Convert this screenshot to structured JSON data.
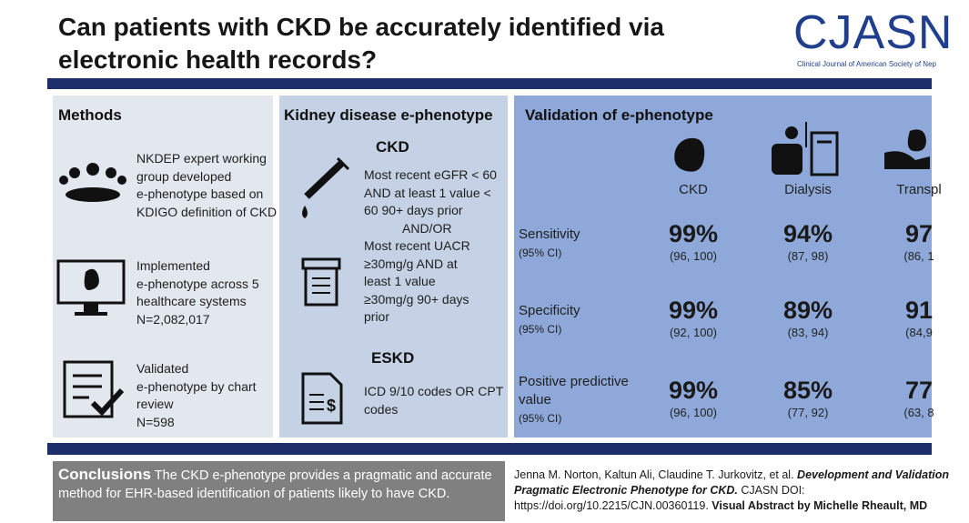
{
  "header": {
    "title": [
      "Can patients with CKD be accurately identified via",
      "electronic health records?"
    ],
    "logo": "CJASN",
    "logo_subtitle": "Clinical Journal of American Society of Nep"
  },
  "methods": {
    "title": "Methods",
    "items": [
      [
        "NKDEP expert working",
        "group developed",
        "e-phenotype based on",
        "KDIGO definition of CKD"
      ],
      [
        "Implemented",
        "e-phenotype across 5",
        "healthcare systems",
        "N=2,082,017"
      ],
      [
        "Validated",
        "e-phenotype by chart",
        "review",
        "N=598"
      ]
    ]
  },
  "phenotype": {
    "title": "Kidney disease e-phenotype",
    "ckd_heading": "CKD",
    "ckd_lines": [
      "Most recent eGFR < 60",
      "AND at least 1 value <",
      "60 90+ days prior",
      "AND/OR",
      "Most recent UACR",
      "≥30mg/g AND at",
      "least 1 value",
      "≥30mg/g 90+ days",
      "prior"
    ],
    "eskd_heading": "ESKD",
    "eskd_lines": [
      "ICD 9/10 codes OR CPT",
      "codes"
    ]
  },
  "validation": {
    "title": "Validation of e-phenotype",
    "columns": [
      "CKD",
      "Dialysis",
      "Transpl"
    ],
    "rows": [
      {
        "label": [
          "Sensitivity"
        ],
        "sublabel": "(95% CI)",
        "values": [
          "99%",
          "94%",
          "97"
        ],
        "cis": [
          "(96, 100)",
          "(87, 98)",
          "(86, 1"
        ]
      },
      {
        "label": [
          "Specificity"
        ],
        "sublabel": "(95% CI)",
        "values": [
          "99%",
          "89%",
          "91"
        ],
        "cis": [
          "(92, 100)",
          "(83, 94)",
          "(84,9"
        ]
      },
      {
        "label": [
          "Positive predictive",
          "value"
        ],
        "sublabel": "(95% CI)",
        "values": [
          "99%",
          "85%",
          "77"
        ],
        "cis": [
          "(96, 100)",
          "(77, 92)",
          "(63, 8"
        ]
      }
    ]
  },
  "conclusions": {
    "heading": "Conclusions",
    "text": "The CKD e-phenotype provides a pragmatic and accurate method for EHR-based identification of patients likely to have CKD."
  },
  "citation": {
    "authors": "Jenna M. Norton, Kaltun Ali, Claudine T. Jurkovitz, et al.",
    "article": [
      "Development and Validation",
      "Pragmatic Electronic Phenotype for CKD."
    ],
    "journal": "CJASN DOI:",
    "doi": "https://doi.org/10.2215/CJN.00360119.",
    "credit": "Visual Abstract by Michelle Rheault, MD"
  }
}
